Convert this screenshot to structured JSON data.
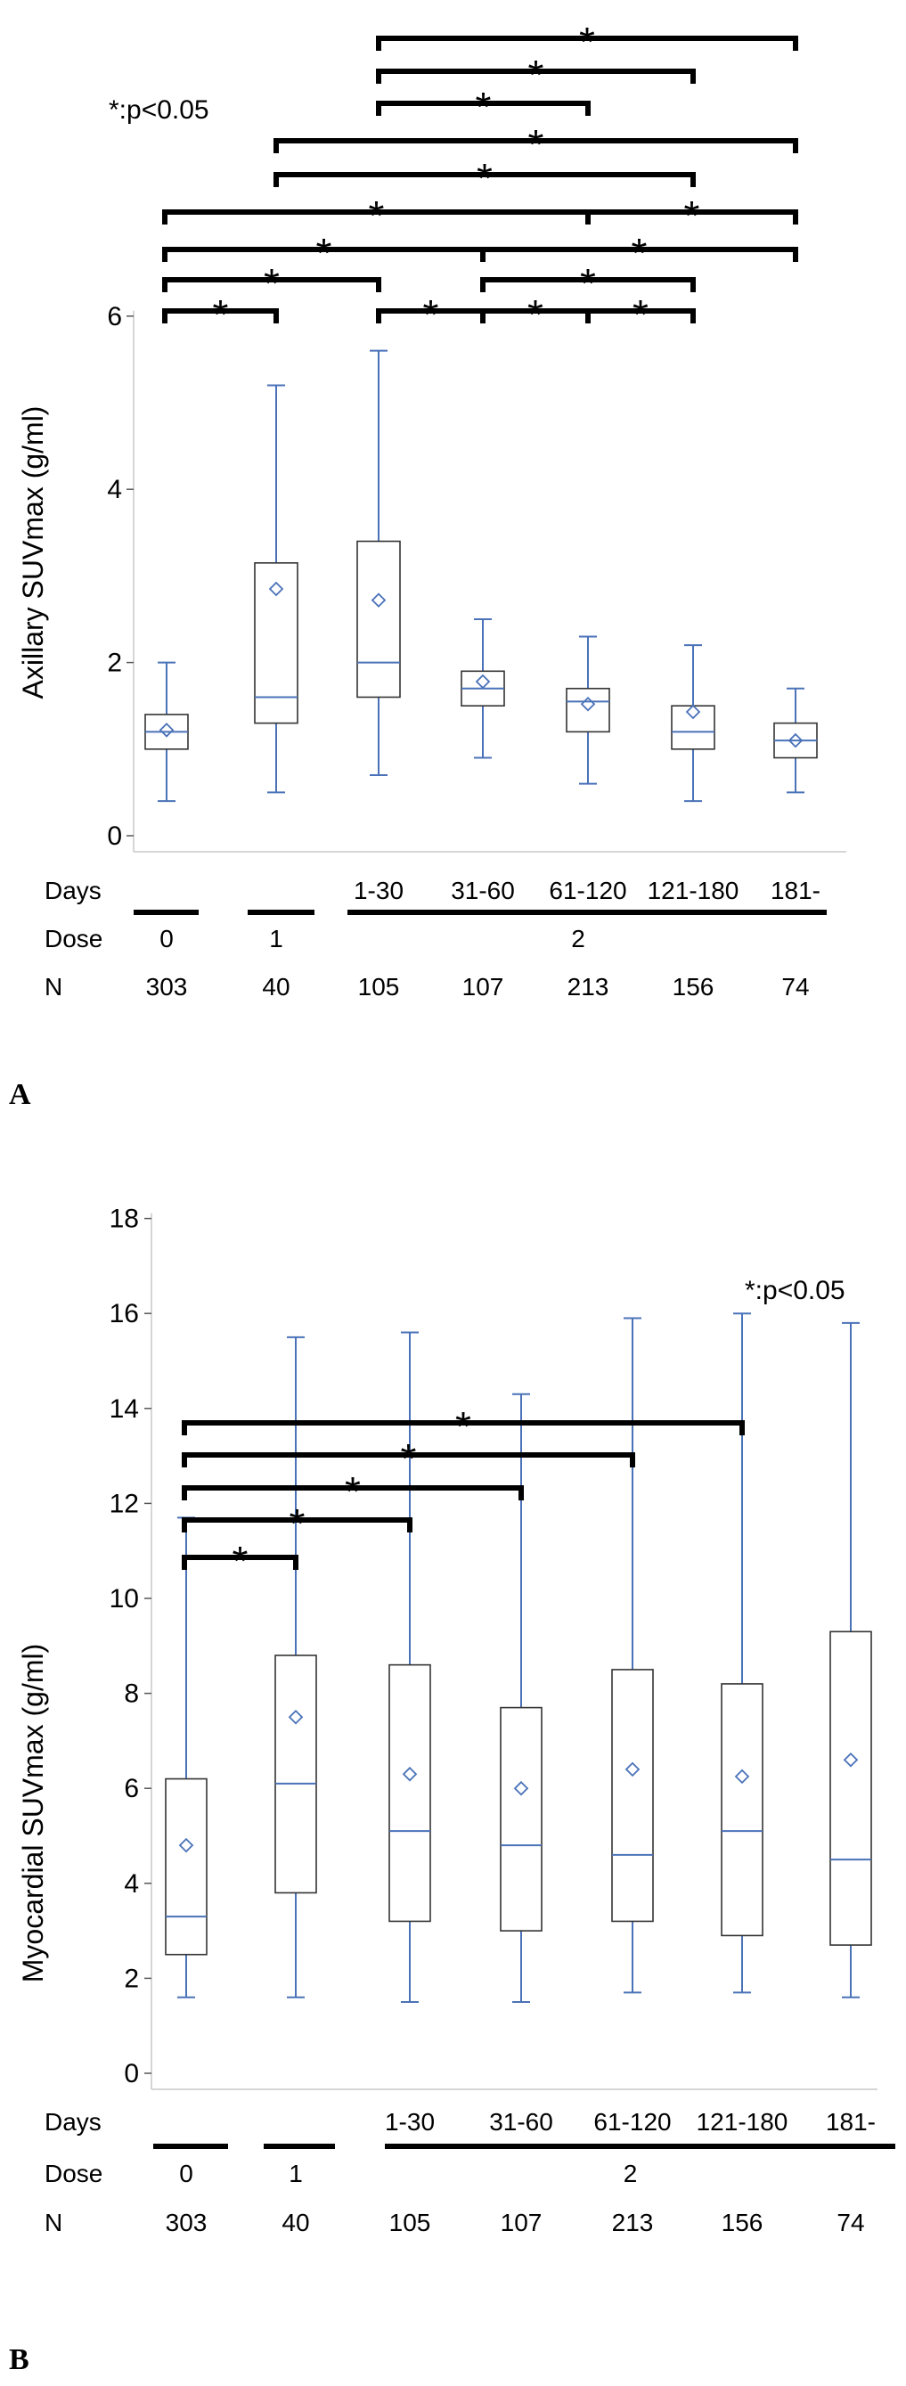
{
  "charts": [
    {
      "panel": "A",
      "pnote": "*:p<0.05",
      "ylabel": "Axillary SUVmax (g/ml)",
      "ylim": [
        0,
        6
      ],
      "yticks": [
        0,
        2,
        4,
        6
      ],
      "boxes": [
        {
          "whisker_low": 0.4,
          "q1": 1.0,
          "median": 1.2,
          "q3": 1.4,
          "whisker_high": 2.0,
          "mean": 1.22
        },
        {
          "whisker_low": 0.5,
          "q1": 1.3,
          "median": 1.6,
          "q3": 3.15,
          "whisker_high": 5.2,
          "mean": 2.85
        },
        {
          "whisker_low": 0.7,
          "q1": 1.6,
          "median": 2.0,
          "q3": 3.4,
          "whisker_high": 5.6,
          "mean": 2.72
        },
        {
          "whisker_low": 0.9,
          "q1": 1.5,
          "median": 1.7,
          "q3": 1.9,
          "whisker_high": 2.5,
          "mean": 1.78
        },
        {
          "whisker_low": 0.6,
          "q1": 1.2,
          "median": 1.55,
          "q3": 1.7,
          "whisker_high": 2.3,
          "mean": 1.52
        },
        {
          "whisker_low": 0.4,
          "q1": 1.0,
          "median": 1.2,
          "q3": 1.5,
          "whisker_high": 2.2,
          "mean": 1.43
        },
        {
          "whisker_low": 0.5,
          "q1": 0.9,
          "median": 1.1,
          "q3": 1.3,
          "whisker_high": 1.7,
          "mean": 1.1
        }
      ],
      "comparisons": [
        [
          0,
          1
        ],
        [
          2,
          3
        ],
        [
          3,
          4
        ],
        [
          4,
          5
        ],
        [
          0,
          2
        ],
        [
          3,
          5
        ],
        [
          0,
          3
        ],
        [
          3,
          6
        ],
        [
          0,
          4
        ],
        [
          4,
          6
        ],
        [
          1,
          5
        ],
        [
          1,
          6
        ],
        [
          2,
          4
        ],
        [
          2,
          5
        ],
        [
          2,
          6
        ]
      ],
      "days_label": "Days",
      "days": [
        "",
        "",
        "1-30",
        "31-60",
        "61-120",
        "121-180",
        "181-"
      ],
      "dose_label": "Dose",
      "doses": [
        "0",
        "1",
        "2"
      ],
      "n_label": "N",
      "n": [
        "303",
        "40",
        "105",
        "107",
        "213",
        "156",
        "74"
      ],
      "star": "*"
    },
    {
      "panel": "B",
      "pnote": "*:p<0.05",
      "ylabel": "Myocardial SUVmax (g/ml)",
      "ylim": [
        0,
        18
      ],
      "yticks": [
        0,
        2,
        4,
        6,
        8,
        10,
        12,
        14,
        16,
        18
      ],
      "boxes": [
        {
          "whisker_low": 1.6,
          "q1": 2.5,
          "median": 3.3,
          "q3": 6.2,
          "whisker_high": 11.7,
          "mean": 4.8
        },
        {
          "whisker_low": 1.6,
          "q1": 3.8,
          "median": 6.1,
          "q3": 8.8,
          "whisker_high": 15.5,
          "mean": 7.5
        },
        {
          "whisker_low": 1.5,
          "q1": 3.2,
          "median": 5.1,
          "q3": 8.6,
          "whisker_high": 15.6,
          "mean": 6.3
        },
        {
          "whisker_low": 1.5,
          "q1": 3.0,
          "median": 4.8,
          "q3": 7.7,
          "whisker_high": 14.3,
          "mean": 6.0
        },
        {
          "whisker_low": 1.7,
          "q1": 3.2,
          "median": 4.6,
          "q3": 8.5,
          "whisker_high": 15.9,
          "mean": 6.4
        },
        {
          "whisker_low": 1.7,
          "q1": 2.9,
          "median": 5.1,
          "q3": 8.2,
          "whisker_high": 16.0,
          "mean": 6.25
        },
        {
          "whisker_low": 1.6,
          "q1": 2.7,
          "median": 4.5,
          "q3": 9.3,
          "whisker_high": 15.8,
          "mean": 6.6
        }
      ],
      "comparisons": [
        [
          0,
          1
        ],
        [
          0,
          2
        ],
        [
          0,
          3
        ],
        [
          0,
          4
        ],
        [
          0,
          5
        ]
      ],
      "days_label": "Days",
      "days": [
        "",
        "",
        "1-30",
        "31-60",
        "61-120",
        "121-180",
        "181-"
      ],
      "dose_label": "Dose",
      "doses": [
        "0",
        "1",
        "2"
      ],
      "n_label": "N",
      "n": [
        "303",
        "40",
        "105",
        "107",
        "213",
        "156",
        "74"
      ],
      "star": "*"
    }
  ]
}
